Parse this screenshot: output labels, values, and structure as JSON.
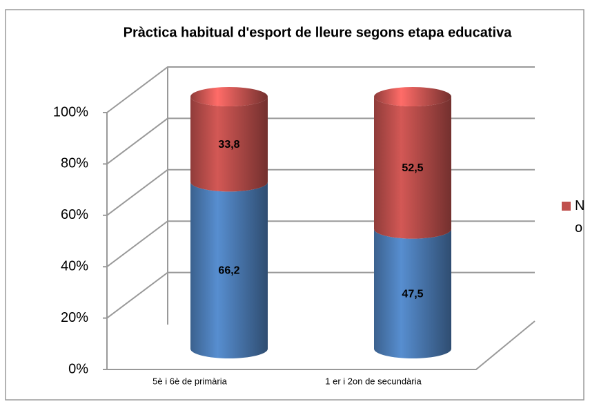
{
  "chart_data": {
    "type": "bar",
    "stacked": true,
    "three_d": true,
    "title": "Pràctica habitual d'esport de lleure segons etapa educativa",
    "categories": [
      "5è i 6è de primària",
      "1 er i 2on de secundària"
    ],
    "series": [
      {
        "color": "#4f81bd",
        "values": [
          66.2,
          47.5
        ],
        "value_labels": [
          "66,2",
          "47,5"
        ]
      },
      {
        "name": "No",
        "color": "#c0504d",
        "values": [
          33.8,
          52.5
        ],
        "value_labels": [
          "33,8",
          "52,5"
        ]
      }
    ],
    "ylim": [
      0,
      100
    ],
    "yticks": [
      {
        "value": 0,
        "label": "0%"
      },
      {
        "value": 20,
        "label": "20%"
      },
      {
        "value": 40,
        "label": "40%"
      },
      {
        "value": 60,
        "label": "60%"
      },
      {
        "value": 80,
        "label": "80%"
      },
      {
        "value": 100,
        "label": "100%"
      }
    ],
    "grid": true,
    "legend": "right"
  }
}
